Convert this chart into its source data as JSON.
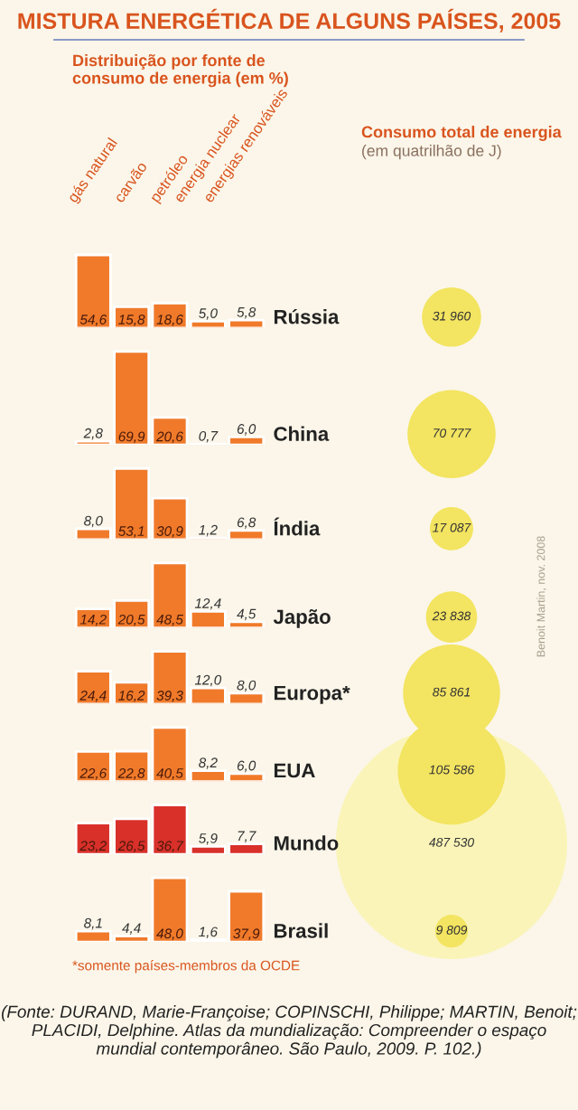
{
  "chart_data": [
    {
      "type": "other",
      "title": "MISTURA ENERGÉTICA DE ALGUNS PAÍSES, 2005",
      "annotations": [
        "*somente países-membros da OCDE",
        "(Fonte: DURAND, Marie-Françoise; COPINSCHI, Philippe; MARTIN, Benoit; PLACIDI, Delphine. Atlas da mundialização: Compreender o espaço mundial contemporâneo. São Paulo, 2009. P. 102.)"
      ]
    },
    {
      "type": "bar",
      "title": "Rússia",
      "subtitle": "Distribuição por fonte de consumo de energia (em %)",
      "categories": [
        "gás natural",
        "carvão",
        "petróleo",
        "energia nuclear",
        "energias renováveis"
      ],
      "values": [
        54.6,
        15.8,
        18.6,
        5.0,
        5.8
      ],
      "value_labels": [
        "54,6",
        "15,8",
        "18,6",
        "5,0",
        "5,8"
      ],
      "color": "#f07a2a"
    },
    {
      "type": "bar",
      "title": "China",
      "categories": [
        null,
        null,
        null,
        null,
        null
      ],
      "values": [
        2.8,
        69.9,
        20.6,
        0.7,
        6.0
      ],
      "value_labels": [
        "2,8",
        "69,9",
        "20,6",
        "0,7",
        "6,0"
      ],
      "color": "#f07a2a"
    },
    {
      "type": "bar",
      "title": "Índia",
      "categories": [
        null,
        null,
        null,
        null,
        null
      ],
      "values": [
        8.0,
        53.1,
        30.9,
        1.2,
        6.8
      ],
      "value_labels": [
        "8,0",
        "53,1",
        "30,9",
        "1,2",
        "6,8"
      ],
      "color": "#f07a2a"
    },
    {
      "type": "bar",
      "title": "Japão",
      "categories": [
        null,
        null,
        null,
        null,
        null
      ],
      "values": [
        14.2,
        20.5,
        48.5,
        12.4,
        4.5
      ],
      "value_labels": [
        "14,2",
        "20,5",
        "48,5",
        "12,4",
        "4,5"
      ],
      "color": "#f07a2a"
    },
    {
      "type": "bar",
      "title": "Europa*",
      "categories": [
        null,
        null,
        null,
        null,
        null
      ],
      "values": [
        24.4,
        16.2,
        39.3,
        12.0,
        8.0
      ],
      "value_labels": [
        "24,4",
        "16,2",
        "39,3",
        "12,0",
        "8,0"
      ],
      "color": "#f07a2a"
    },
    {
      "type": "bar",
      "title": "EUA",
      "categories": [
        null,
        null,
        null,
        null,
        null
      ],
      "values": [
        22.6,
        22.8,
        40.5,
        8.2,
        6.0
      ],
      "value_labels": [
        "22,6",
        "22,8",
        "40,5",
        "8,2",
        "6,0"
      ],
      "color": "#f07a2a"
    },
    {
      "type": "bar",
      "title": "Mundo",
      "categories": [
        null,
        null,
        null,
        null,
        null
      ],
      "values": [
        23.2,
        26.5,
        36.7,
        5.9,
        7.7
      ],
      "value_labels": [
        "23,2",
        "26,5",
        "36,7",
        "5,9",
        "7,7"
      ],
      "color": "#d9302a"
    },
    {
      "type": "bar",
      "title": "Brasil",
      "categories": [
        null,
        null,
        null,
        null,
        null
      ],
      "values": [
        8.1,
        4.4,
        48.0,
        1.6,
        37.9
      ],
      "value_labels": [
        "8,1",
        "4,4",
        "48,0",
        "1,6",
        "37,9"
      ],
      "color": "#f07a2a"
    },
    {
      "type": "other",
      "title": "Consumo total de energia",
      "subtitle": "(em quatrilhão de J)",
      "values": [
        31960,
        70777,
        17087,
        23838,
        85861,
        105586,
        487530,
        9809
      ],
      "colors": [
        "#f3e461",
        "#f3e461",
        "#f3e461",
        "#f3e461",
        "#f3e461",
        "#f3e461",
        "#faf4b8",
        "#f3e461"
      ],
      "data_labels": true,
      "annotations": [
        "Benoit Martin, nov. 2008"
      ]
    }
  ]
}
